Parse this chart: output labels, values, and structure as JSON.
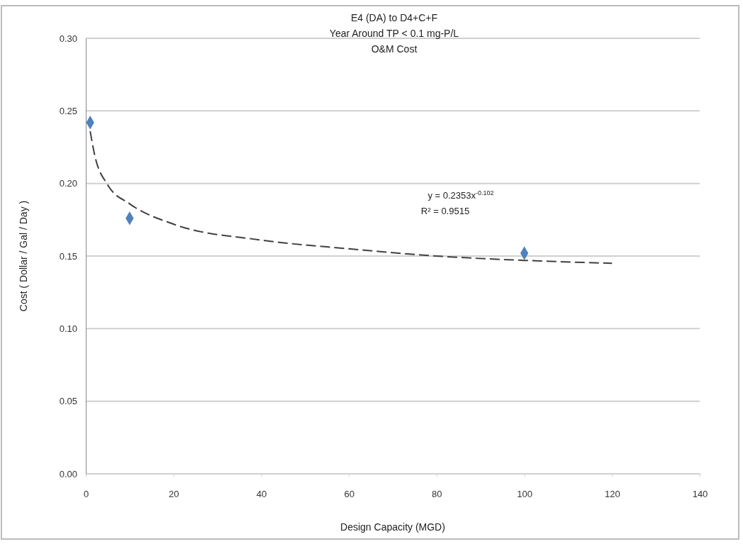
{
  "chart_data": {
    "type": "scatter",
    "title": "E4 (DA) to D4+C+F\nYear Around TP < 0.1 mg-P/L\nO&M Cost",
    "xlabel": "Design Capacity (MGD)",
    "ylabel": "Cost ( Dollar / Gal / Day )",
    "annotations": [
      "y = 0.2353x$^{-0.102}$",
      "R² = 0.9515"
    ],
    "series": [
      {
        "color": "#4f81bd",
        "marker": "diamond",
        "x": [
          1,
          10,
          100
        ],
        "values": [
          0.242,
          0.176,
          0.152
        ]
      },
      {
        "type": "line",
        "color": "#404040",
        "line_style": "dashed",
        "marker": "none",
        "x": [
          1,
          2,
          5,
          10,
          20,
          40,
          60,
          80,
          100,
          120
        ],
        "values": [
          0.236,
          0.22,
          0.199,
          0.186,
          0.172,
          0.161,
          0.155,
          0.15,
          0.147,
          0.145
        ]
      }
    ],
    "xlim": [
      0,
      140
    ],
    "xticks": [
      0,
      20,
      40,
      60,
      80,
      100,
      120,
      140
    ],
    "ylim": [
      0,
      0.3
    ],
    "yticks": [
      {
        "value": 0,
        "label": "0.00"
      },
      {
        "value": 0.05,
        "label": "0.05"
      },
      {
        "value": 0.1,
        "label": "0.10"
      },
      {
        "value": 0.15,
        "label": "0.15"
      },
      {
        "value": 0.2,
        "label": "0.20"
      },
      {
        "value": 0.25,
        "label": "0.25"
      },
      {
        "value": 0.3,
        "label": "0.30"
      }
    ],
    "grid": "y"
  }
}
